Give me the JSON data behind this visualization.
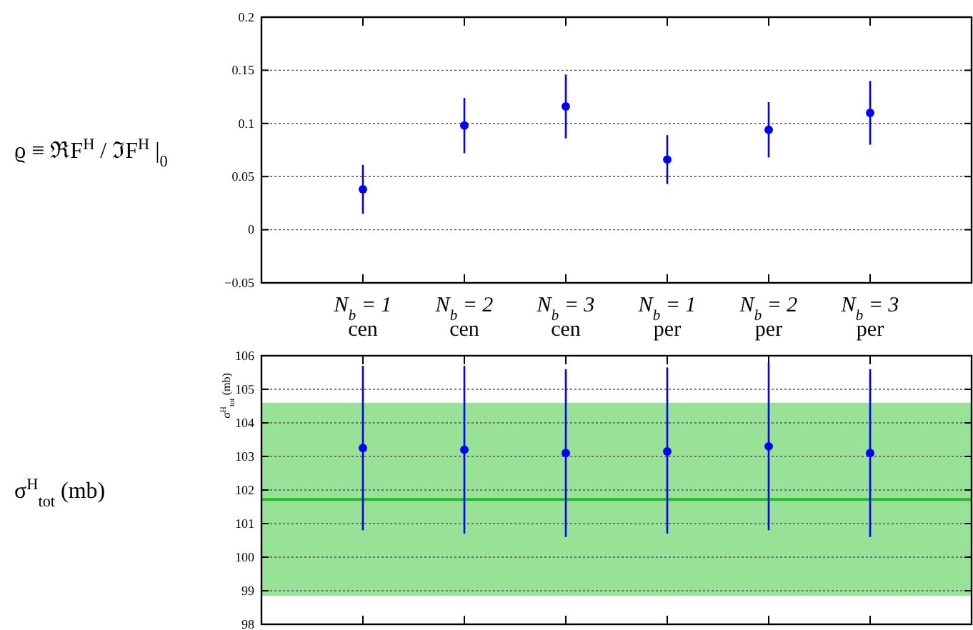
{
  "chart_data": [
    {
      "type": "scatter",
      "ylabel": "ϱ ≡ ℜF$^{H}$ / ℑF$^{H}$ |$_{0}$",
      "categories": [
        "N$_{b}$ = 1\ncen",
        "N$_{b}$ = 2\ncen",
        "N$_{b}$ = 3\ncen",
        "N$_{b}$ = 1\nper",
        "N$_{b}$ = 2\nper",
        "N$_{b}$ = 3\nper"
      ],
      "series": [
        {
          "color": "#0000ff",
          "values": [
            0.038,
            0.098,
            0.116,
            0.066,
            0.094,
            0.11
          ],
          "errors": [
            [
              0.015,
              0.061
            ],
            [
              0.072,
              0.124
            ],
            [
              0.086,
              0.146
            ],
            [
              0.043,
              0.089
            ],
            [
              0.068,
              0.12
            ],
            [
              0.08,
              0.14
            ]
          ]
        }
      ],
      "ylim": [
        -0.05,
        0.2
      ],
      "yticks": [
        {
          "value": -0.05,
          "label": "−0.05"
        },
        0,
        0.05,
        0.1,
        0.15,
        0.2
      ],
      "grid": "y",
      "marker": "circle"
    },
    {
      "type": "scatter",
      "ylabel": "σ$^{H}$$_{tot}$    (mb)",
      "annotations": [
        "σ$^{H}$$_{tot}$  (mb)"
      ],
      "categories": [
        null,
        null,
        null,
        null,
        null,
        null
      ],
      "series": [
        {
          "color": "#0000ff",
          "values": [
            103.25,
            103.2,
            103.1,
            103.15,
            103.3,
            103.1
          ],
          "errors": [
            [
              100.8,
              105.7
            ],
            [
              100.7,
              105.7
            ],
            [
              100.6,
              105.6
            ],
            [
              100.7,
              105.65
            ],
            [
              100.8,
              105.8
            ],
            [
              100.6,
              105.6
            ]
          ]
        }
      ],
      "ylim": [
        98,
        106
      ],
      "yticks": [
        98,
        99,
        100,
        101,
        102,
        103,
        104,
        105,
        106
      ],
      "grid": "y",
      "marker": "circle",
      "tick_labels": "y",
      "bands": [
        {
          "axis": "y",
          "from": 98.85,
          "to": 104.6,
          "color": "#98e298"
        }
      ],
      "ref_lines": [
        {
          "axis": "y",
          "value": 101.72,
          "color": "#22bb22",
          "line_style": "solid"
        }
      ]
    }
  ]
}
